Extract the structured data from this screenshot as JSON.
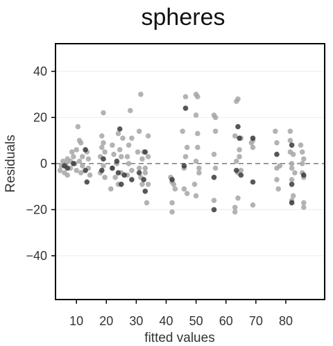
{
  "chart_data": {
    "type": "scatter",
    "title": "spheres",
    "xlabel": "fitted values",
    "ylabel": "Residuals",
    "xlim": [
      3,
      93
    ],
    "ylim": [
      -59,
      52
    ],
    "xticks": [
      10,
      20,
      30,
      40,
      50,
      60,
      70,
      80
    ],
    "yticks": [
      -40,
      -20,
      0,
      20,
      40
    ],
    "reference_line": {
      "y": 0,
      "style": "dashed",
      "color": "#777777"
    },
    "grid": "horizontal",
    "colors": {
      "point_light": "#a6a6a6",
      "point_dark": "#3a3a3a",
      "grid": "#ebebeb",
      "frame": "#000000"
    },
    "series": [
      {
        "tone": "light",
        "points": [
          [
            4.5,
            -3
          ],
          [
            5,
            -1
          ],
          [
            5.5,
            1
          ],
          [
            6,
            -4
          ],
          [
            6.5,
            0
          ],
          [
            7,
            2
          ],
          [
            7,
            -5
          ],
          [
            8,
            1
          ],
          [
            8,
            -2
          ],
          [
            8.5,
            5
          ],
          [
            9,
            3
          ],
          [
            9.5,
            0
          ],
          [
            10,
            6
          ],
          [
            10,
            -3
          ],
          [
            10.5,
            16
          ],
          [
            11,
            10
          ],
          [
            11,
            1
          ],
          [
            11.5,
            -4
          ],
          [
            11.5,
            9
          ],
          [
            12,
            3
          ],
          [
            12,
            -1
          ],
          [
            13.5,
            5
          ],
          [
            14,
            2
          ],
          [
            14,
            -2
          ],
          [
            14.5,
            -5
          ],
          [
            18,
            -4
          ],
          [
            18,
            3
          ],
          [
            18.5,
            7
          ],
          [
            18.5,
            12
          ],
          [
            19,
            22
          ],
          [
            19,
            -1
          ],
          [
            19,
            9
          ],
          [
            19.5,
            -6
          ],
          [
            19.5,
            5
          ],
          [
            21.5,
            -11
          ],
          [
            22,
            -2
          ],
          [
            22,
            8
          ],
          [
            22.5,
            4
          ],
          [
            23,
            -6
          ],
          [
            23.5,
            0
          ],
          [
            24,
            -9
          ],
          [
            24,
            13
          ],
          [
            24.5,
            6
          ],
          [
            25,
            -4
          ],
          [
            25,
            3
          ],
          [
            25.5,
            11
          ],
          [
            27,
            -5
          ],
          [
            27,
            3
          ],
          [
            27.5,
            0
          ],
          [
            27.5,
            8
          ],
          [
            28,
            23
          ],
          [
            28.5,
            -3
          ],
          [
            28.5,
            11
          ],
          [
            30.5,
            5
          ],
          [
            31,
            -2
          ],
          [
            31,
            14
          ],
          [
            31.5,
            -6
          ],
          [
            31.5,
            30
          ],
          [
            32,
            2
          ],
          [
            32,
            -9
          ],
          [
            32.5,
            5
          ],
          [
            33,
            -4
          ],
          [
            33,
            -2
          ],
          [
            33.5,
            -17
          ],
          [
            34,
            12
          ],
          [
            34,
            -9
          ],
          [
            34,
            3
          ],
          [
            41.5,
            -6
          ],
          [
            42,
            -17
          ],
          [
            42,
            -21
          ],
          [
            42,
            -8
          ],
          [
            42.5,
            -9
          ],
          [
            43,
            -11
          ],
          [
            45.5,
            14
          ],
          [
            46,
            -2
          ],
          [
            46,
            -11
          ],
          [
            46.5,
            29
          ],
          [
            46.5,
            3
          ],
          [
            47,
            -13
          ],
          [
            47,
            7
          ],
          [
            49.5,
            -9
          ],
          [
            50,
            30
          ],
          [
            50,
            1
          ],
          [
            50,
            -14
          ],
          [
            50,
            21
          ],
          [
            50.5,
            29
          ],
          [
            50.5,
            13
          ],
          [
            50.5,
            7
          ],
          [
            51,
            -2
          ],
          [
            51,
            -4
          ],
          [
            56,
            21
          ],
          [
            56,
            -16
          ],
          [
            56,
            4
          ],
          [
            56.5,
            14
          ],
          [
            56.5,
            -2
          ],
          [
            56.5,
            20
          ],
          [
            63,
            -19
          ],
          [
            63,
            -21
          ],
          [
            63,
            12
          ],
          [
            63.5,
            27
          ],
          [
            63.5,
            1
          ],
          [
            64,
            28
          ],
          [
            64,
            -15
          ],
          [
            64,
            -4
          ],
          [
            64.5,
            6
          ],
          [
            64.5,
            3
          ],
          [
            65,
            -3
          ],
          [
            65,
            11
          ],
          [
            68.5,
            9
          ],
          [
            69,
            7
          ],
          [
            69,
            -18
          ],
          [
            69,
            10
          ],
          [
            76.5,
            14
          ],
          [
            77,
            -7
          ],
          [
            77,
            9
          ],
          [
            77,
            -2
          ],
          [
            77.5,
            -11
          ],
          [
            78,
            -1
          ],
          [
            81.5,
            14
          ],
          [
            81.5,
            10
          ],
          [
            81.5,
            5
          ],
          [
            82,
            -2
          ],
          [
            82,
            -7
          ],
          [
            82,
            -16
          ],
          [
            82,
            0
          ],
          [
            82.5,
            -14
          ],
          [
            82.5,
            4
          ],
          [
            83,
            -4
          ],
          [
            85,
            8
          ],
          [
            85.5,
            -4
          ],
          [
            85.5,
            5
          ],
          [
            85.5,
            0
          ],
          [
            86,
            -17
          ],
          [
            86,
            -19
          ],
          [
            86,
            -6
          ],
          [
            86,
            2
          ]
        ]
      },
      {
        "tone": "dark",
        "points": [
          [
            6,
            -1
          ],
          [
            7,
            -2
          ],
          [
            9,
            0
          ],
          [
            13,
            -3
          ],
          [
            13,
            6
          ],
          [
            13.5,
            -8
          ],
          [
            18.5,
            -3
          ],
          [
            19,
            2
          ],
          [
            22,
            -2
          ],
          [
            23.5,
            1
          ],
          [
            24,
            -4
          ],
          [
            24.5,
            15
          ],
          [
            25,
            -9
          ],
          [
            26,
            -5
          ],
          [
            28.5,
            -7
          ],
          [
            31,
            -4
          ],
          [
            32.5,
            -7
          ],
          [
            33,
            -12
          ],
          [
            33,
            5
          ],
          [
            42,
            -7
          ],
          [
            46.5,
            24
          ],
          [
            46,
            -1
          ],
          [
            56,
            -6
          ],
          [
            56,
            -20
          ],
          [
            63.5,
            -3
          ],
          [
            64,
            16
          ],
          [
            64.5,
            11
          ],
          [
            65,
            -5
          ],
          [
            69,
            11
          ],
          [
            69,
            -8
          ],
          [
            77,
            4
          ],
          [
            82,
            8
          ],
          [
            82,
            -9
          ],
          [
            82,
            -17
          ],
          [
            86,
            -5
          ]
        ]
      }
    ]
  }
}
